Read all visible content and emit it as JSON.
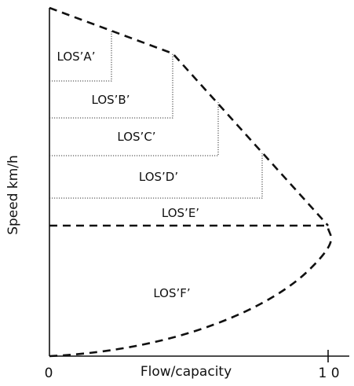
{
  "axes": {
    "y_label": "Speed km/h",
    "x_label": "Flow/capacity",
    "x_origin_label": "0",
    "x_end_label": "1 0"
  },
  "levels": [
    {
      "label": "LOS’A’"
    },
    {
      "label": "LOS’B’"
    },
    {
      "label": "LOS’C’"
    },
    {
      "label": "LOS’D’"
    },
    {
      "label": "LOS’E’"
    },
    {
      "label": "LOS’F’"
    }
  ],
  "colors": {
    "line": "#111111",
    "background": "#ffffff"
  }
}
